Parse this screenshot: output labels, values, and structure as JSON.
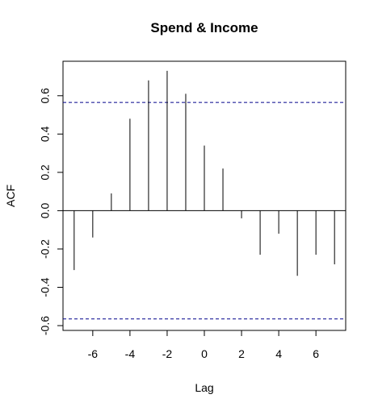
{
  "chart_data": {
    "type": "bar",
    "subtype": "acf-stem",
    "title": "Spend & Income",
    "xlabel": "Lag",
    "ylabel": "ACF",
    "x": [
      -7,
      -6,
      -5,
      -4,
      -3,
      -2,
      -1,
      0,
      1,
      2,
      3,
      4,
      5,
      6,
      7
    ],
    "values": [
      -0.31,
      -0.14,
      0.09,
      0.48,
      0.68,
      0.73,
      0.61,
      0.34,
      0.22,
      -0.04,
      -0.23,
      -0.12,
      -0.34,
      -0.23,
      -0.28
    ],
    "confidence_bound": 0.565,
    "xlim": [
      -7.6,
      7.6
    ],
    "ylim": [
      -0.625,
      0.78
    ],
    "x_ticks": [
      -6,
      -4,
      -2,
      0,
      2,
      4,
      6
    ],
    "y_ticks": [
      -0.6,
      -0.4,
      -0.2,
      0.0,
      0.2,
      0.4,
      0.6
    ],
    "x_tick_labels": [
      "-6",
      "-4",
      "-2",
      "0",
      "2",
      "4",
      "6"
    ],
    "y_tick_labels": [
      "-0.6",
      "-0.4",
      "-0.2",
      "0.0",
      "0.2",
      "0.4",
      "0.6"
    ],
    "zero_line": true,
    "grid": false,
    "colors": {
      "stem": "#000000",
      "bound": "#00008b",
      "axis": "#000000"
    }
  }
}
